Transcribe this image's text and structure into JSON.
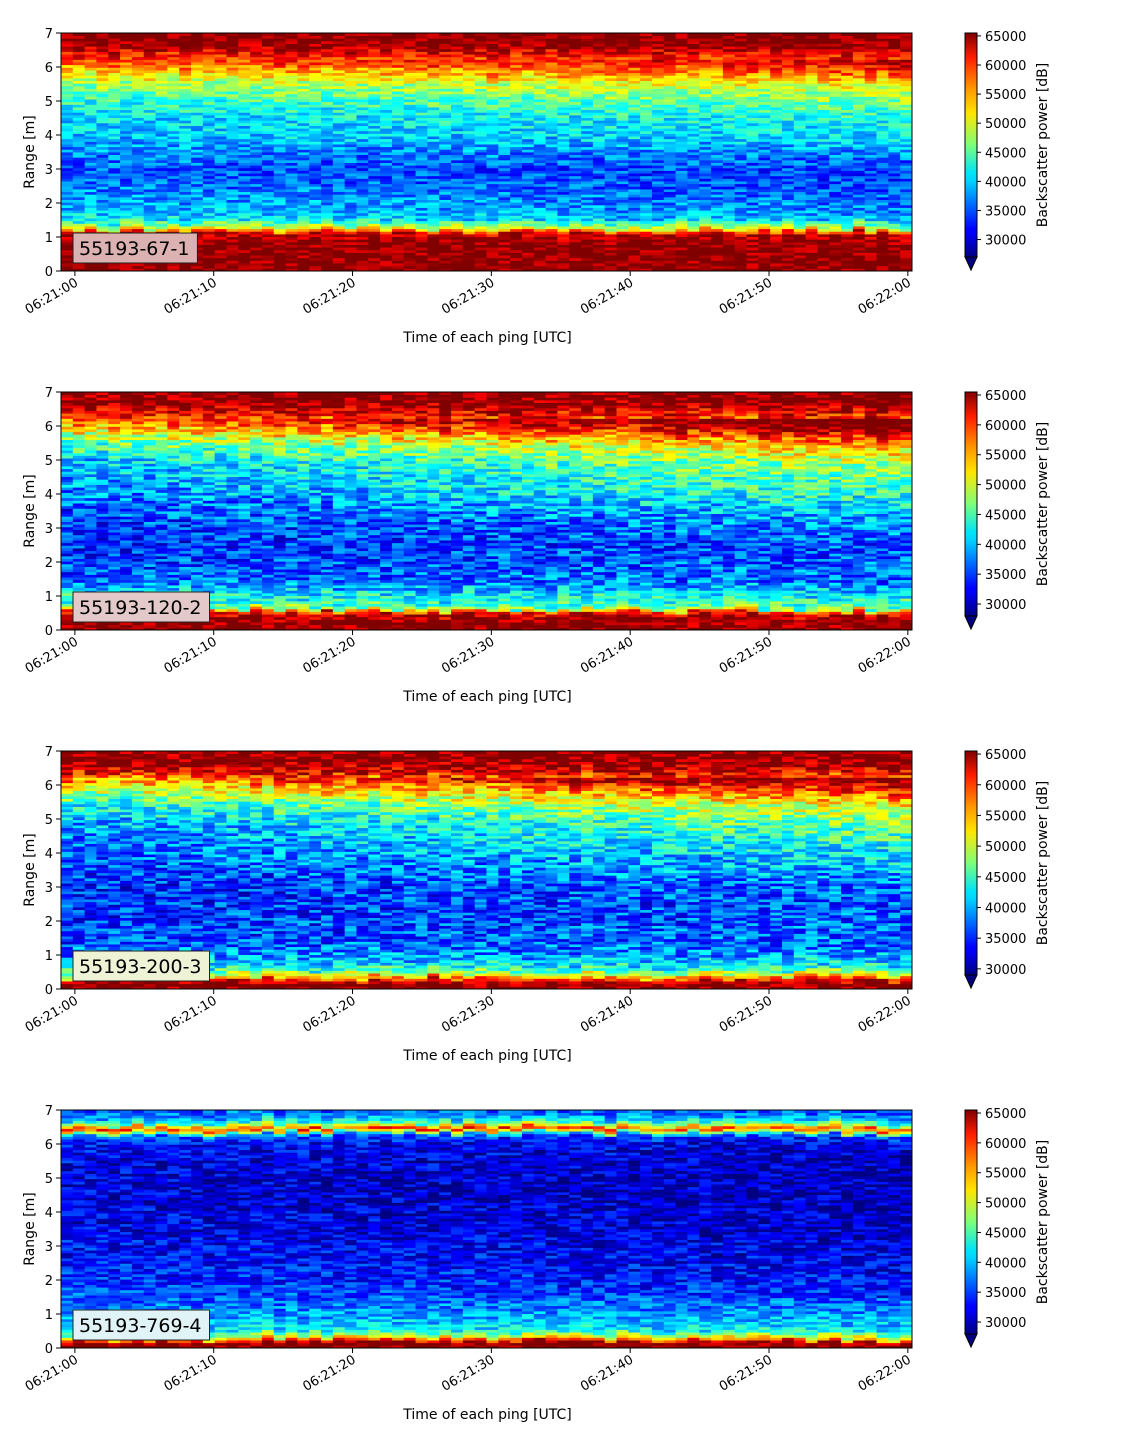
{
  "chart_data": [
    {
      "type": "heatmap",
      "label": "55193-67-1",
      "label_box_color": "#dcb1b1",
      "xlabel": "Time of each ping [UTC]",
      "ylabel": "Range [m]",
      "xticks": [
        "06:21:00",
        "06:21:10",
        "06:21:20",
        "06:21:30",
        "06:21:40",
        "06:21:50",
        "06:22:00"
      ],
      "xlim_seconds": [
        -1,
        60.3
      ],
      "ylim": [
        0,
        7
      ],
      "yticks": [
        0,
        1,
        2,
        3,
        4,
        5,
        6,
        7
      ],
      "colorbar": {
        "label": "Backscatter power [dB]",
        "ticks": [
          30000,
          35000,
          40000,
          45000,
          50000,
          55000,
          60000,
          65000
        ],
        "range": [
          27000,
          65500
        ],
        "colormap": "jet",
        "extend": "min"
      },
      "profile": [
        {
          "range": 0.0,
          "value": 65500
        },
        {
          "range": 0.3,
          "value": 65500
        },
        {
          "range": 0.8,
          "value": 65500
        },
        {
          "range": 1.1,
          "value": 63000
        },
        {
          "range": 1.25,
          "value": 50000
        },
        {
          "range": 1.5,
          "value": 41000
        },
        {
          "range": 1.8,
          "value": 39000
        },
        {
          "range": 2.1,
          "value": 38000
        },
        {
          "range": 2.6,
          "value": 36000
        },
        {
          "range": 3.0,
          "value": 35000
        },
        {
          "range": 3.5,
          "value": 37000
        },
        {
          "range": 4.0,
          "value": 39500
        },
        {
          "range": 4.5,
          "value": 40000
        },
        {
          "range": 5.0,
          "value": 43000
        },
        {
          "range": 5.5,
          "value": 47000
        },
        {
          "range": 6.0,
          "value": 55000
        },
        {
          "range": 6.4,
          "value": 61000
        },
        {
          "range": 6.7,
          "value": 65500
        },
        {
          "range": 7.0,
          "value": 65500
        }
      ],
      "trend": -2000,
      "upper_trend": 7000,
      "noise": 4000
    },
    {
      "type": "heatmap",
      "label": "55193-120-2",
      "label_box_color": "#e3c9c9",
      "xlabel": "Time of each ping [UTC]",
      "ylabel": "Range [m]",
      "xticks": [
        "06:21:00",
        "06:21:10",
        "06:21:20",
        "06:21:30",
        "06:21:40",
        "06:21:50",
        "06:22:00"
      ],
      "xlim_seconds": [
        -1,
        60.3
      ],
      "ylim": [
        0,
        7
      ],
      "yticks": [
        0,
        1,
        2,
        3,
        4,
        5,
        6,
        7
      ],
      "colorbar": {
        "label": "Backscatter power [dB]",
        "ticks": [
          30000,
          35000,
          40000,
          45000,
          50000,
          55000,
          60000,
          65000
        ],
        "range": [
          28000,
          65500
        ],
        "colormap": "jet",
        "extend": "min"
      },
      "profile": [
        {
          "range": 0.0,
          "value": 65500
        },
        {
          "range": 0.3,
          "value": 65500
        },
        {
          "range": 0.5,
          "value": 62000
        },
        {
          "range": 0.65,
          "value": 46000
        },
        {
          "range": 1.0,
          "value": 42000
        },
        {
          "range": 1.5,
          "value": 36000
        },
        {
          "range": 2.0,
          "value": 35000
        },
        {
          "range": 2.5,
          "value": 34000
        },
        {
          "range": 3.0,
          "value": 34500
        },
        {
          "range": 3.5,
          "value": 35500
        },
        {
          "range": 4.0,
          "value": 37500
        },
        {
          "range": 4.5,
          "value": 38500
        },
        {
          "range": 5.0,
          "value": 40000
        },
        {
          "range": 5.5,
          "value": 45000
        },
        {
          "range": 6.0,
          "value": 54000
        },
        {
          "range": 6.4,
          "value": 62000
        },
        {
          "range": 6.7,
          "value": 65500
        },
        {
          "range": 7.0,
          "value": 65500
        }
      ],
      "trend": 1500,
      "upper_trend": 11000,
      "noise": 5000
    },
    {
      "type": "heatmap",
      "label": "55193-200-3",
      "label_box_color": "#eef3d6",
      "xlabel": "Time of each ping [UTC]",
      "ylabel": "Range [m]",
      "xticks": [
        "06:21:00",
        "06:21:10",
        "06:21:20",
        "06:21:30",
        "06:21:40",
        "06:21:50",
        "06:22:00"
      ],
      "xlim_seconds": [
        -1,
        60.3
      ],
      "ylim": [
        0,
        7
      ],
      "yticks": [
        0,
        1,
        2,
        3,
        4,
        5,
        6,
        7
      ],
      "colorbar": {
        "label": "Backscatter power [dB]",
        "ticks": [
          30000,
          35000,
          40000,
          45000,
          50000,
          55000,
          60000,
          65000
        ],
        "range": [
          29000,
          65500
        ],
        "colormap": "jet",
        "extend": "min"
      },
      "profile": [
        {
          "range": 0.0,
          "value": 65500
        },
        {
          "range": 0.2,
          "value": 65500
        },
        {
          "range": 0.35,
          "value": 55000
        },
        {
          "range": 0.6,
          "value": 44000
        },
        {
          "range": 1.0,
          "value": 39000
        },
        {
          "range": 1.5,
          "value": 36000
        },
        {
          "range": 2.0,
          "value": 35500
        },
        {
          "range": 2.5,
          "value": 35000
        },
        {
          "range": 3.0,
          "value": 35000
        },
        {
          "range": 3.5,
          "value": 36000
        },
        {
          "range": 4.0,
          "value": 37000
        },
        {
          "range": 4.5,
          "value": 38500
        },
        {
          "range": 5.0,
          "value": 40000
        },
        {
          "range": 5.5,
          "value": 44000
        },
        {
          "range": 6.0,
          "value": 52000
        },
        {
          "range": 6.4,
          "value": 62000
        },
        {
          "range": 6.7,
          "value": 65500
        },
        {
          "range": 7.0,
          "value": 65500
        }
      ],
      "trend": 1500,
      "upper_trend": 9000,
      "noise": 5000
    },
    {
      "type": "heatmap",
      "label": "55193-769-4",
      "label_box_color": "#e0f3f7",
      "xlabel": "Time of each ping [UTC]",
      "ylabel": "Range [m]",
      "xticks": [
        "06:21:00",
        "06:21:10",
        "06:21:20",
        "06:21:30",
        "06:21:40",
        "06:21:50",
        "06:22:00"
      ],
      "xlim_seconds": [
        -1,
        60.3
      ],
      "ylim": [
        0,
        7
      ],
      "yticks": [
        0,
        1,
        2,
        3,
        4,
        5,
        6,
        7
      ],
      "colorbar": {
        "label": "Backscatter power [dB]",
        "ticks": [
          30000,
          35000,
          40000,
          45000,
          50000,
          55000,
          60000,
          65000
        ],
        "range": [
          28000,
          65500
        ],
        "colormap": "jet",
        "extend": "min"
      },
      "profile": [
        {
          "range": 0.0,
          "value": 65500
        },
        {
          "range": 0.15,
          "value": 65500
        },
        {
          "range": 0.3,
          "value": 52000
        },
        {
          "range": 0.5,
          "value": 42000
        },
        {
          "range": 1.0,
          "value": 38000
        },
        {
          "range": 1.5,
          "value": 36000
        },
        {
          "range": 2.0,
          "value": 34500
        },
        {
          "range": 2.5,
          "value": 33500
        },
        {
          "range": 3.0,
          "value": 33000
        },
        {
          "range": 3.5,
          "value": 32000
        },
        {
          "range": 4.0,
          "value": 32000
        },
        {
          "range": 4.5,
          "value": 31500
        },
        {
          "range": 5.0,
          "value": 31500
        },
        {
          "range": 5.5,
          "value": 32000
        },
        {
          "range": 6.0,
          "value": 33000
        },
        {
          "range": 6.25,
          "value": 36000
        },
        {
          "range": 6.45,
          "value": 60000
        },
        {
          "range": 6.6,
          "value": 45000
        },
        {
          "range": 6.8,
          "value": 38000
        },
        {
          "range": 7.0,
          "value": 36000
        }
      ],
      "trend": -1500,
      "upper_trend": 0,
      "noise": 4000
    }
  ]
}
